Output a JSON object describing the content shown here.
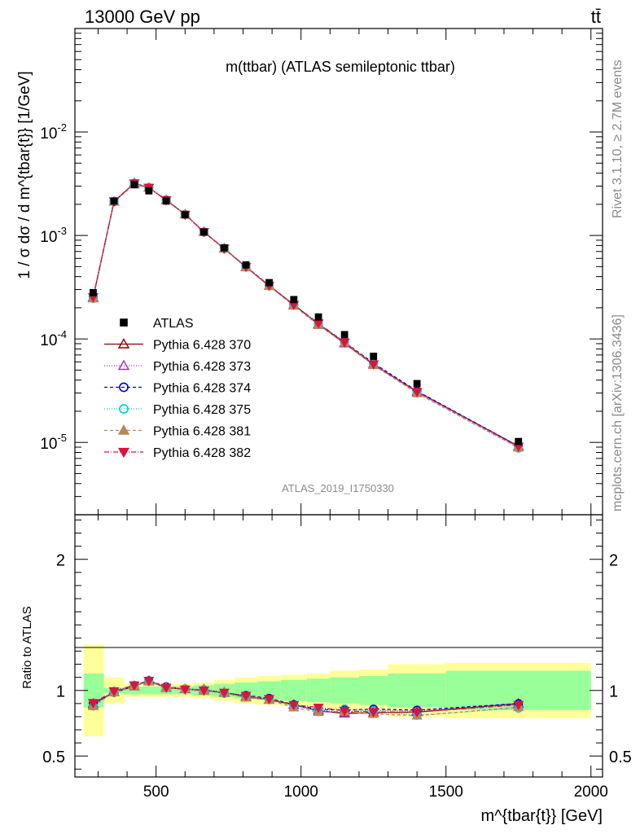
{
  "header": {
    "energy_label": "13000 GeV pp",
    "process_label": "tt̄"
  },
  "side_labels": {
    "rivet": "Rivet 3.1.10, ≥ 2.7M events",
    "mcplots": "mcplots.cern.ch [arXiv:1306.3436]"
  },
  "chart_data": [
    {
      "type": "scatter",
      "panel": "main",
      "title": "m(ttbar) (ATLAS semileptonic ttbar)",
      "watermark": "ATLAS_2019_I1750330",
      "ylabel": "1 / σ dσ / d m^{tbar{t}} [1/GeV]",
      "yscale": "log",
      "ylim": [
        2e-06,
        0.1
      ],
      "xlim": [
        220,
        2040
      ],
      "x": [
        283,
        355,
        425,
        475,
        535,
        600,
        665,
        735,
        810,
        890,
        975,
        1060,
        1150,
        1250,
        1400,
        1750
      ],
      "x_edges": [
        250,
        320,
        390,
        450,
        500,
        570,
        630,
        700,
        770,
        850,
        930,
        1020,
        1100,
        1200,
        1300,
        1500,
        2000
      ],
      "series": [
        {
          "name": "ATLAS",
          "marker": "square",
          "color": "#000000",
          "values": [
            0.00028,
            0.00215,
            0.0031,
            0.0027,
            0.00215,
            0.00158,
            0.00108,
            0.00076,
            0.00052,
            0.00035,
            0.00024,
            0.000163,
            0.00011,
            6.8e-05,
            3.7e-05,
            1.02e-05
          ]
        },
        {
          "name": "Pythia 6.428 370",
          "marker": "triangle-up-open",
          "dash": "solid",
          "color": "#8b0000",
          "values": [
            0.000252,
            0.00212,
            0.0032,
            0.0029,
            0.00219,
            0.0016,
            0.00108,
            0.000746,
            0.000494,
            0.000326,
            0.000214,
            0.000138,
            9.06e-05,
            5.64e-05,
            3.09e-05,
            9.2e-06
          ]
        },
        {
          "name": "Pythia 6.428 373",
          "marker": "triangle-up-open",
          "dash": "1,2",
          "color": "#9932cc",
          "values": [
            0.000249,
            0.00213,
            0.0032,
            0.0029,
            0.0022,
            0.0016,
            0.00109,
            0.00075,
            0.000497,
            0.000325,
            0.000213,
            0.000139,
            9.13e-05,
            5.76e-05,
            3.12e-05,
            9.1e-06
          ]
        },
        {
          "name": "Pythia 6.428 374",
          "marker": "circle-open",
          "dash": "4,3",
          "color": "#0000cd",
          "values": [
            0.000252,
            0.00212,
            0.0032,
            0.0029,
            0.00221,
            0.0016,
            0.00108,
            0.000744,
            0.0005,
            0.000329,
            0.000214,
            0.000139,
            9.34e-05,
            5.83e-05,
            3.14e-05,
            9.2e-06
          ]
        },
        {
          "name": "Pythia 6.428 375",
          "marker": "circle-open",
          "dash": "1,2",
          "color": "#00ced1",
          "values": [
            0.000246,
            0.00214,
            0.0032,
            0.0029,
            0.0022,
            0.0016,
            0.00108,
            0.000745,
            0.000494,
            0.000326,
            0.000212,
            0.000139,
            9.46e-05,
            5.73e-05,
            3e-05,
            8.8e-06
          ]
        },
        {
          "name": "Pythia 6.428 381",
          "marker": "triangle-up-filled",
          "dash": "4,3",
          "color": "#b8875a",
          "values": [
            0.000246,
            0.00212,
            0.0031,
            0.0029,
            0.0022,
            0.0016,
            0.00108,
            0.000748,
            0.000491,
            0.000325,
            0.000209,
            0.000136,
            9.24e-05,
            5.58e-05,
            2.99e-05,
            8.9e-06
          ]
        },
        {
          "name": "Pythia 6.428 382",
          "marker": "triangle-down-filled",
          "dash": "6,2,1,2",
          "color": "#dc143c",
          "values": [
            0.000254,
            0.00214,
            0.0032,
            0.0029,
            0.0022,
            0.00159,
            0.00108,
            0.000748,
            0.000499,
            0.000328,
            0.000214,
            0.000142,
            9.29e-05,
            5.69e-05,
            3.09e-05,
            9.1e-06
          ]
        }
      ],
      "y_tick_labels": [
        "10^{-5}",
        "10^{-4}",
        "10^{-3}",
        "10^{-2}"
      ]
    },
    {
      "type": "scatter",
      "panel": "ratio",
      "ylabel": "Ratio to ATLAS",
      "xlabel": "m^{tbar{t}} [GeV]",
      "ylim": [
        0.34,
        2.34
      ],
      "xlim": [
        220,
        2040
      ],
      "x_tick_labels": [
        "500",
        "1000",
        "1500",
        "2000"
      ],
      "y_tick_labels": [
        "0.5",
        "1",
        "2"
      ],
      "bands": {
        "x_edges": [
          250,
          320,
          390,
          450,
          500,
          570,
          630,
          700,
          770,
          850,
          930,
          1020,
          1100,
          1200,
          1300,
          1500,
          2000
        ],
        "inner_color": "#99ff99",
        "outer_color": "#ffff99",
        "inner_halfwidth": [
          0.13,
          0.02,
          0.03,
          0.03,
          0.03,
          0.03,
          0.04,
          0.05,
          0.06,
          0.07,
          0.08,
          0.09,
          0.1,
          0.11,
          0.13,
          0.15
        ],
        "outer_halfwidth": [
          0.35,
          0.1,
          0.05,
          0.05,
          0.05,
          0.05,
          0.06,
          0.08,
          0.1,
          0.11,
          0.12,
          0.13,
          0.15,
          0.16,
          0.2,
          0.21
        ]
      },
      "series": [
        {
          "name": "Pythia 6.428 370",
          "values": [
            0.9,
            0.985,
            1.032,
            1.074,
            1.02,
            1.01,
            1.0,
            0.982,
            0.95,
            0.93,
            0.89,
            0.845,
            0.825,
            0.83,
            0.835,
            0.9
          ]
        },
        {
          "name": "Pythia 6.428 373",
          "values": [
            0.89,
            0.99,
            1.035,
            1.072,
            1.025,
            1.01,
            1.01,
            0.987,
            0.955,
            0.928,
            0.888,
            0.852,
            0.83,
            0.848,
            0.844,
            0.895
          ]
        },
        {
          "name": "Pythia 6.428 374",
          "values": [
            0.9,
            0.985,
            1.038,
            1.075,
            1.028,
            1.012,
            1.003,
            0.979,
            0.962,
            0.94,
            0.892,
            0.855,
            0.85,
            0.858,
            0.85,
            0.9
          ]
        },
        {
          "name": "Pythia 6.428 375",
          "values": [
            0.88,
            0.995,
            1.04,
            1.068,
            1.02,
            1.01,
            1.002,
            0.98,
            0.95,
            0.93,
            0.885,
            0.852,
            0.86,
            0.843,
            0.81,
            0.865
          ]
        },
        {
          "name": "Pythia 6.428 381",
          "values": [
            0.88,
            0.985,
            1.035,
            1.068,
            1.022,
            1.013,
            1.002,
            0.984,
            0.945,
            0.928,
            0.87,
            0.835,
            0.84,
            0.82,
            0.808,
            0.872
          ]
        },
        {
          "name": "Pythia 6.428 382",
          "values": [
            0.905,
            0.995,
            1.04,
            1.075,
            1.022,
            1.008,
            1.0,
            0.984,
            0.96,
            0.936,
            0.89,
            0.87,
            0.845,
            0.836,
            0.835,
            0.89
          ]
        }
      ]
    }
  ]
}
